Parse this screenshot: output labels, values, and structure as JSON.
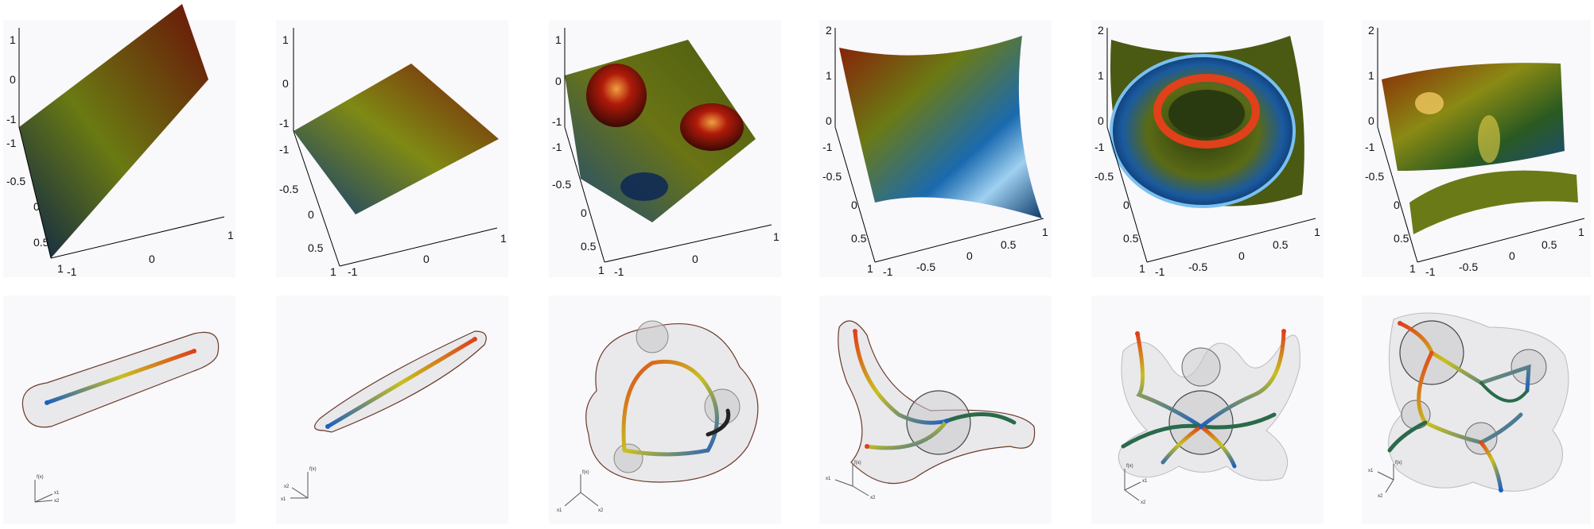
{
  "panels_top": [
    {
      "z_ticks": [
        "1",
        "0",
        "-1"
      ],
      "y_ticks": [
        "-1",
        "-0.5",
        "0",
        "0.5",
        "1"
      ],
      "x_ticks": [
        "-1",
        "0",
        "1"
      ]
    },
    {
      "z_ticks": [
        "1",
        "0",
        "-1"
      ],
      "y_ticks": [
        "-1",
        "-0.5",
        "0",
        "0.5",
        "1"
      ],
      "x_ticks": [
        "-1",
        "0",
        "1"
      ]
    },
    {
      "z_ticks": [
        "1",
        "0",
        "-1"
      ],
      "y_ticks": [
        "-1",
        "-0.5",
        "0",
        "0.5",
        "1"
      ],
      "x_ticks": [
        "-1",
        "0",
        "1"
      ]
    },
    {
      "z_ticks": [
        "2",
        "1",
        "0"
      ],
      "y_ticks": [
        "-1",
        "-0.5",
        "0",
        "0.5",
        "1"
      ],
      "x_ticks": [
        "-1",
        "-0.5",
        "0",
        "0.5",
        "1"
      ]
    },
    {
      "z_ticks": [
        "2",
        "1",
        "0"
      ],
      "y_ticks": [
        "-1",
        "-0.5",
        "0",
        "0.5",
        "1"
      ],
      "x_ticks": [
        "-1",
        "-0.5",
        "0",
        "0.5",
        "1"
      ]
    },
    {
      "z_ticks": [
        "2",
        "1",
        "0"
      ],
      "y_ticks": [
        "-1",
        "-0.5",
        "0",
        "0.5",
        "1"
      ],
      "x_ticks": [
        "-1",
        "-0.5",
        "0",
        "0.5",
        "1"
      ]
    }
  ],
  "axis_labels": {
    "f": "f(x)",
    "x1": "x1",
    "x2": "x2"
  },
  "colors": {
    "panel_bg": "#f9f8fb",
    "low": "#1f5fbf",
    "mid": "#c8c020",
    "high": "#e0401a",
    "contour": "#5a2a1a"
  }
}
